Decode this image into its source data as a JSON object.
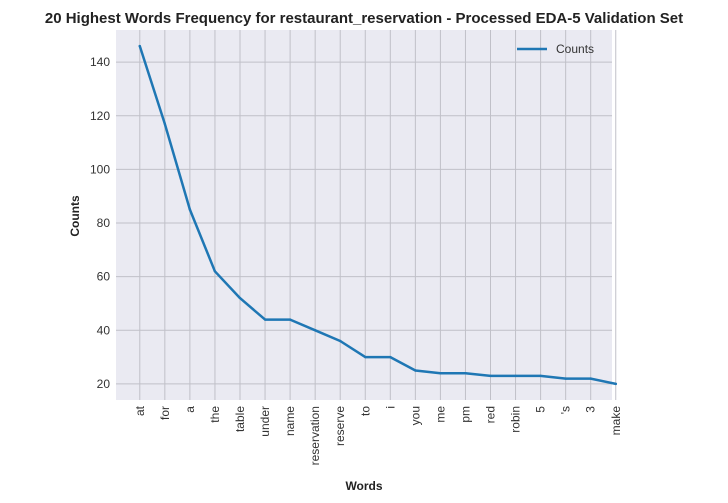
{
  "chart_data": {
    "type": "line",
    "title": "20 Highest Words Frequency for restaurant_reservation - Processed EDA-5 Validation Set",
    "xlabel": "Words",
    "ylabel": "Counts",
    "categories": [
      "at",
      "for",
      "a",
      "the",
      "table",
      "under",
      "name",
      "reservation",
      "reserve",
      "to",
      "i",
      "you",
      "me",
      "pm",
      "red",
      "robin",
      "5",
      "'s",
      "3",
      "make"
    ],
    "series": [
      {
        "name": "Counts",
        "color": "#1f77b4",
        "values": [
          146,
          117,
          85,
          62,
          52,
          44,
          44,
          40,
          36,
          30,
          30,
          25,
          24,
          24,
          23,
          23,
          23,
          22,
          22,
          20
        ]
      }
    ],
    "ylim": [
      14,
      152
    ],
    "yticks": [
      20,
      40,
      60,
      80,
      100,
      120,
      140
    ],
    "grid": true,
    "legend_position": "top-right",
    "background": "#eaeaf2",
    "grid_color": "#c0c0c8"
  }
}
